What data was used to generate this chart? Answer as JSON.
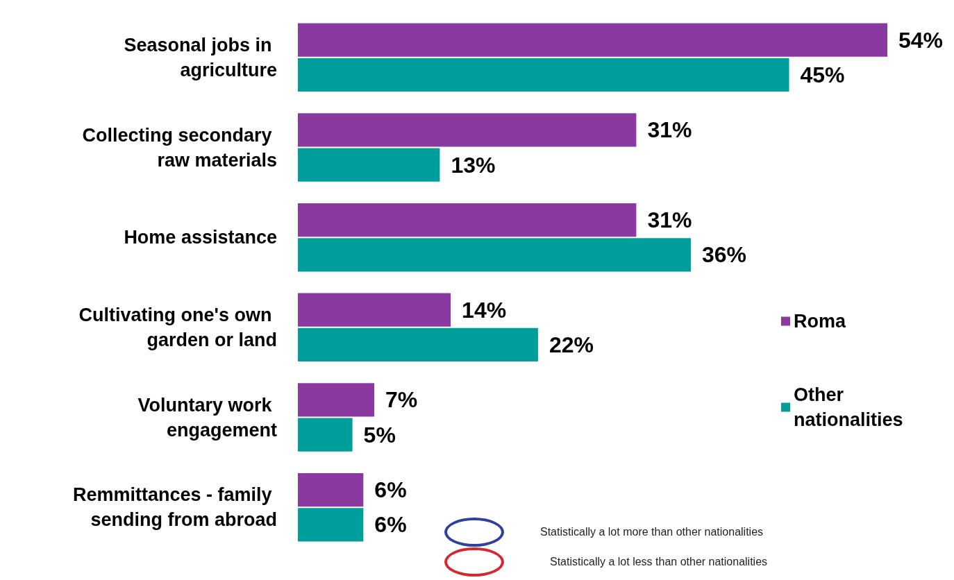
{
  "chart_data": {
    "type": "bar",
    "orientation": "horizontal",
    "categories": [
      "Seasonal jobs in agriculture",
      "Collecting secondary raw materials",
      "Home assistance",
      "Cultivating one's own garden or land",
      "Voluntary work engagement",
      "Remmittances - family sending from abroad"
    ],
    "series": [
      {
        "name": "Roma",
        "color": "#8a39a1",
        "values": [
          54,
          31,
          31,
          14,
          7,
          6
        ],
        "value_labels": [
          "54%",
          "31%",
          "31%",
          "14%",
          "7%",
          "6%"
        ]
      },
      {
        "name": "Other nationalities",
        "color": "#009e9b",
        "values": [
          45,
          13,
          36,
          22,
          5,
          6
        ],
        "value_labels": [
          "45%",
          "13%",
          "36%",
          "22%",
          "5%",
          "6%"
        ]
      }
    ],
    "legend": "right",
    "annotations": [
      "Statistically a lot more than other nationalities",
      "Statistically a lot less than other nationalities"
    ]
  }
}
